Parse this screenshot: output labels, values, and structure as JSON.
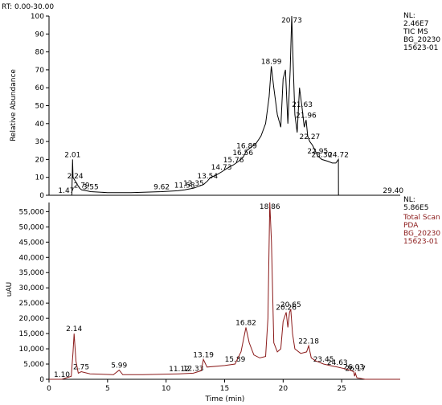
{
  "header": {
    "rt_label": "RT: 0.00-30.00"
  },
  "chart_data": [
    {
      "type": "line",
      "ylabel": "Relative Abundance",
      "ylim": [
        0,
        100
      ],
      "yticks": [
        0,
        10,
        20,
        30,
        40,
        50,
        60,
        70,
        80,
        90,
        100
      ],
      "xlim": [
        0,
        30
      ],
      "color": "#000000",
      "info": [
        "NL:",
        "2.46E7",
        "TIC  MS",
        "BG_20230",
        "15623-01"
      ],
      "series": [
        {
          "x": [
            0,
            1.0,
            1.47,
            1.95,
            2.01,
            2.05,
            2.24,
            2.6,
            2.79,
            3.2,
            3.55,
            5,
            7,
            9.62,
            11,
            11.58,
            12.35,
            12.8,
            13.2,
            13.54,
            13.8,
            14.2,
            14.73,
            15.2,
            15.76,
            16.2,
            16.56,
            16.89,
            17.3,
            17.7,
            18.1,
            18.5,
            18.8,
            18.99,
            19.2,
            19.5,
            19.8,
            20.0,
            20.2,
            20.4,
            20.6,
            20.73,
            20.85,
            21.0,
            21.2,
            21.4,
            21.63,
            21.8,
            21.96,
            22.1,
            22.27,
            22.5,
            22.95,
            23.3,
            23.8,
            24.2,
            24.5,
            24.72,
            24.73,
            25.5,
            27,
            29.4,
            30
          ],
          "values": [
            0,
            0,
            0,
            0,
            20,
            10,
            8,
            4,
            3,
            2.5,
            2,
            1.5,
            1.5,
            2,
            2.5,
            3,
            4,
            5,
            6,
            8,
            10,
            11,
            13,
            15,
            17,
            19,
            21,
            25,
            27,
            29,
            33,
            40,
            55,
            72,
            60,
            45,
            38,
            65,
            70,
            40,
            70,
            100,
            75,
            45,
            35,
            60,
            48,
            38,
            42,
            33,
            30,
            28,
            22,
            20,
            19,
            18,
            18,
            20,
            0,
            0,
            0,
            0,
            0
          ]
        }
      ],
      "peak_labels": [
        {
          "rt": 1.47,
          "label": "1.47"
        },
        {
          "rt": 2.01,
          "label": "2.01"
        },
        {
          "rt": 2.24,
          "label": "2.24"
        },
        {
          "rt": 2.79,
          "label": "2.79"
        },
        {
          "rt": 3.55,
          "label": "3.55"
        },
        {
          "rt": 9.62,
          "label": "9.62"
        },
        {
          "rt": 11.58,
          "label": "11.58"
        },
        {
          "rt": 12.35,
          "label": "12.35"
        },
        {
          "rt": 13.54,
          "label": "13.54"
        },
        {
          "rt": 14.73,
          "label": "14.73"
        },
        {
          "rt": 15.76,
          "label": "15.76"
        },
        {
          "rt": 16.56,
          "label": "16.56"
        },
        {
          "rt": 16.89,
          "label": "16.89"
        },
        {
          "rt": 18.99,
          "label": "18.99"
        },
        {
          "rt": 20.73,
          "label": "20.73"
        },
        {
          "rt": 21.63,
          "label": "21.63"
        },
        {
          "rt": 21.96,
          "label": "21.96"
        },
        {
          "rt": 22.27,
          "label": "22.27"
        },
        {
          "rt": 22.95,
          "label": "22.95"
        },
        {
          "rt": 23.3,
          "label": "23.30"
        },
        {
          "rt": 24.72,
          "label": "24.72"
        },
        {
          "rt": 29.4,
          "label": "29.40"
        }
      ]
    },
    {
      "type": "line",
      "ylabel": "uAU",
      "ylim": [
        0,
        58000
      ],
      "yticks": [
        0,
        5000,
        10000,
        15000,
        20000,
        25000,
        30000,
        35000,
        40000,
        45000,
        50000,
        55000
      ],
      "ytick_labels": [
        "0",
        "5,000",
        "10,000",
        "15,000",
        "20,000",
        "25,000",
        "30,000",
        "35,000",
        "40,000",
        "45,000",
        "50,000",
        "55,000"
      ],
      "xlim": [
        0,
        30
      ],
      "xticks": [
        0,
        5,
        10,
        15,
        20,
        25
      ],
      "xlabel": "Time (min)",
      "color": "#8b1a1a",
      "info": [
        "NL:",
        "5.86E5",
        "Total Scan",
        "PDA",
        "BG_20230",
        "15623-01"
      ],
      "series": [
        {
          "x": [
            0,
            1.1,
            1.9,
            2.05,
            2.14,
            2.3,
            2.5,
            2.75,
            3.5,
            5.5,
            5.99,
            6.3,
            8,
            11.12,
            12.33,
            13.0,
            13.19,
            13.5,
            15.0,
            15.89,
            16.4,
            16.82,
            17.1,
            17.5,
            18.0,
            18.5,
            18.7,
            18.86,
            19.0,
            19.2,
            19.5,
            19.8,
            20.0,
            20.26,
            20.4,
            20.55,
            20.65,
            20.8,
            21.0,
            21.5,
            22.0,
            22.18,
            22.4,
            22.8,
            23.45,
            24.0,
            24.63,
            25.2,
            25.7,
            26.03,
            26.1,
            26.17,
            26.3,
            27,
            30
          ],
          "values": [
            0,
            0,
            1000,
            9000,
            15000,
            6000,
            2000,
            2500,
            1800,
            1500,
            3000,
            1500,
            1500,
            1800,
            2000,
            2800,
            6500,
            4000,
            4500,
            5000,
            9000,
            17000,
            12000,
            8000,
            7000,
            7500,
            20000,
            58000,
            45000,
            12000,
            9000,
            10000,
            19000,
            22000,
            17000,
            22000,
            23000,
            15000,
            10000,
            8500,
            9000,
            11000,
            7000,
            6000,
            5000,
            4500,
            4000,
            3500,
            3000,
            2500,
            1000,
            2000,
            500,
            0,
            0
          ]
        }
      ],
      "peak_labels": [
        {
          "rt": 1.1,
          "label": "1.10"
        },
        {
          "rt": 2.14,
          "label": "2.14"
        },
        {
          "rt": 2.75,
          "label": "2.75"
        },
        {
          "rt": 5.99,
          "label": "5.99"
        },
        {
          "rt": 11.12,
          "label": "11.12"
        },
        {
          "rt": 12.33,
          "label": "12.33"
        },
        {
          "rt": 13.19,
          "label": "13.19"
        },
        {
          "rt": 15.89,
          "label": "15.89"
        },
        {
          "rt": 16.82,
          "label": "16.82"
        },
        {
          "rt": 18.86,
          "label": "18.86"
        },
        {
          "rt": 20.26,
          "label": "20.26"
        },
        {
          "rt": 20.65,
          "label": "20.65"
        },
        {
          "rt": 22.18,
          "label": "22.18"
        },
        {
          "rt": 23.45,
          "label": "23.45"
        },
        {
          "rt": 24.63,
          "label": "24.63"
        },
        {
          "rt": 26.03,
          "label": "26.03"
        },
        {
          "rt": 26.17,
          "label": "26.17"
        }
      ]
    }
  ]
}
